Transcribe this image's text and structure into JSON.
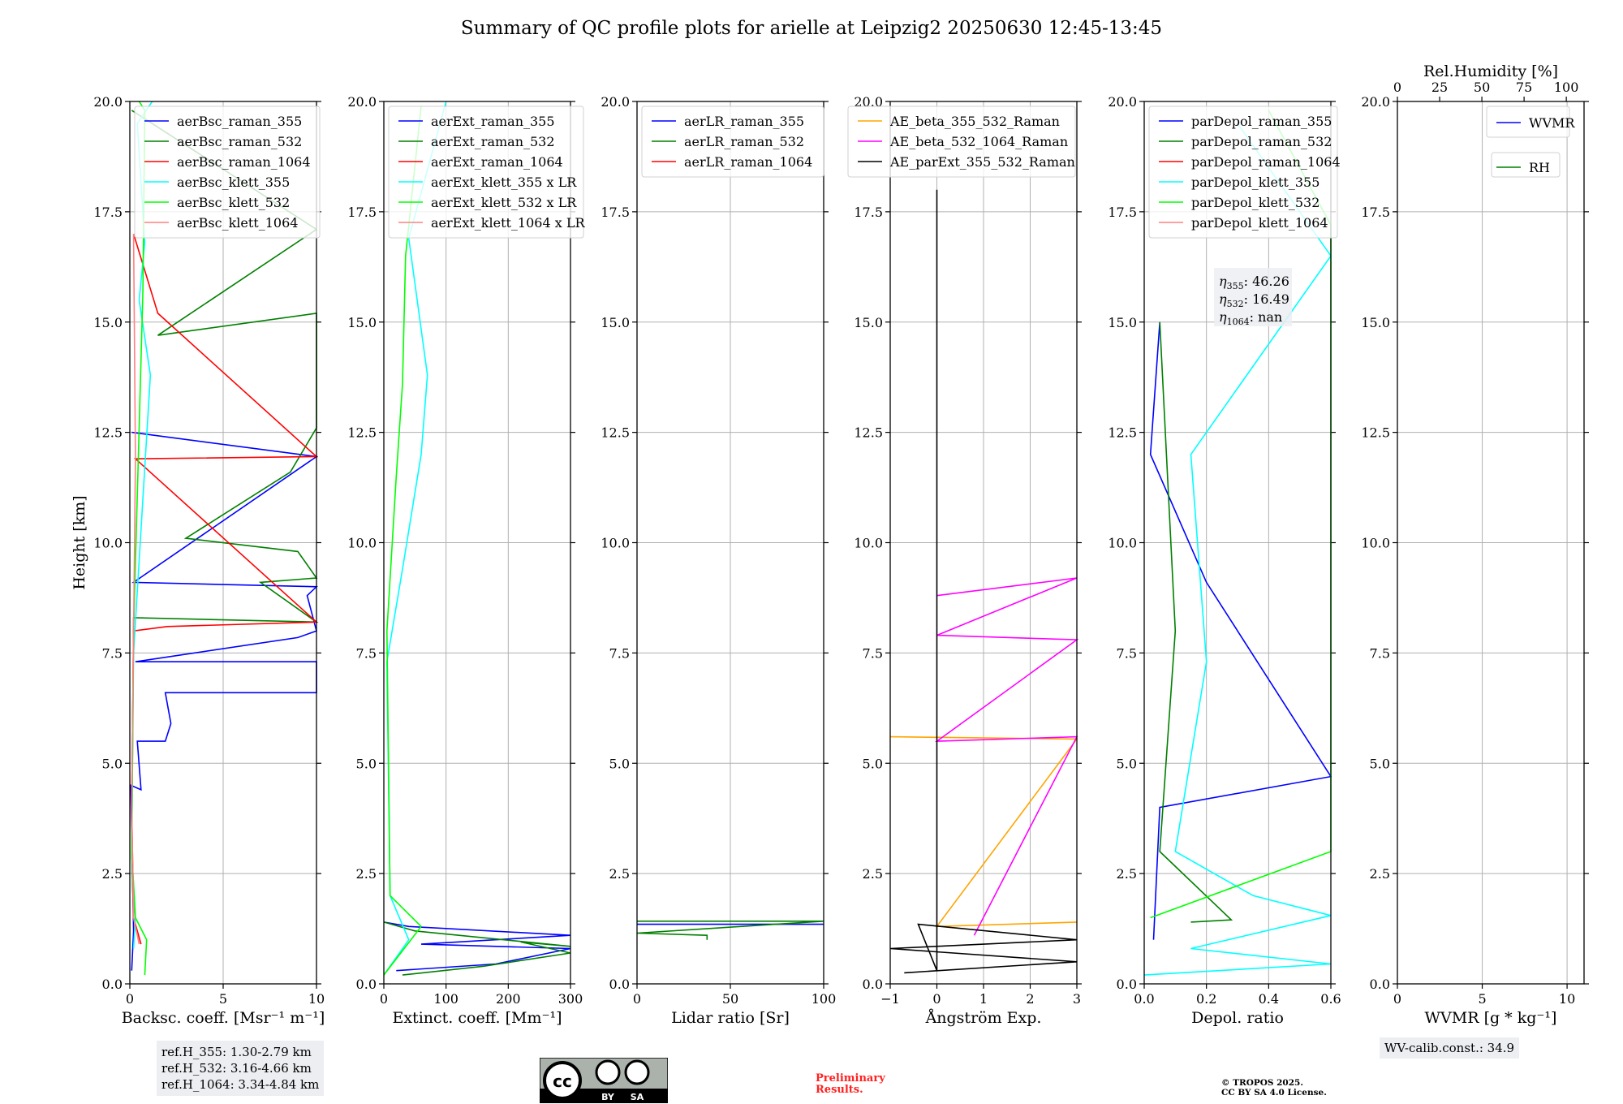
{
  "title": "Summary of QC profile plots for arielle at Leipzig2 20250630 12:45-13:45",
  "annotations": {
    "ref_heights": [
      "ref.H_355: 1.30-2.79 km",
      "ref.H_532: 3.16-4.66 km",
      "ref.H_1064: 3.34-4.84 km"
    ],
    "wv_calib": "WV-calib.const.: 34.9",
    "preliminary": [
      "Preliminary",
      "Results."
    ],
    "copyright": [
      "© TROPOS 2025.",
      "CC BY SA 4.0 License."
    ],
    "eta": [
      {
        "sub": "355",
        "value": ": 46.26"
      },
      {
        "sub": "532",
        "value": ": 16.49"
      },
      {
        "sub": "1064",
        "value": ": nan"
      }
    ],
    "license_badge": {
      "left": "cc",
      "by": "BY",
      "sa": "SA"
    }
  },
  "colors": {
    "blue": "#0000ff",
    "green": "#008000",
    "red": "#ff0000",
    "cyan": "#00ffff",
    "lime": "#00ff00",
    "salmon": "#ff8080",
    "orange": "#ffa500",
    "magenta": "#ff00ff",
    "black": "#000000"
  },
  "chart_data": [
    {
      "type": "line",
      "ylabel": "Height [km]",
      "xlabel": "Backsc. coeff. [Msr⁻¹ m⁻¹]",
      "xlim": [
        0,
        10
      ],
      "ylim": [
        0,
        20
      ],
      "xticks": [
        "0",
        "5",
        "10"
      ],
      "yticks": [
        "0.0",
        "2.5",
        "5.0",
        "7.5",
        "10.0",
        "12.5",
        "15.0",
        "17.5",
        "20.0"
      ],
      "grid": true,
      "legend": "top-right",
      "series": [
        {
          "name": "aerBsc_raman_355",
          "color": "blue",
          "points": [
            [
              0.1,
              0.3
            ],
            [
              0.2,
              1.2
            ],
            [
              0.05,
              4.5
            ],
            [
              0.6,
              4.4
            ],
            [
              0.4,
              5.5
            ],
            [
              1.9,
              5.5
            ],
            [
              2.2,
              5.9
            ],
            [
              1.9,
              6.6
            ],
            [
              10,
              6.6
            ],
            [
              10,
              7.3
            ],
            [
              0.3,
              7.3
            ],
            [
              9,
              7.85
            ],
            [
              10,
              8.0
            ],
            [
              9.5,
              8.8
            ],
            [
              10,
              9.0
            ],
            [
              0.2,
              9.1
            ],
            [
              10,
              11.95
            ],
            [
              0.1,
              12.5
            ]
          ]
        },
        {
          "name": "aerBsc_raman_532",
          "color": "green",
          "points": [
            [
              0.2,
              1.5
            ],
            [
              0.1,
              3
            ],
            [
              0.2,
              8.3
            ],
            [
              10,
              8.2
            ],
            [
              7,
              9.1
            ],
            [
              10,
              9.2
            ],
            [
              9,
              9.8
            ],
            [
              3,
              10.1
            ],
            [
              8.6,
              11.6
            ],
            [
              10,
              12.6
            ],
            [
              10,
              15.2
            ],
            [
              1.5,
              14.7
            ],
            [
              10,
              17.1
            ],
            [
              0.1,
              19.8
            ]
          ]
        },
        {
          "name": "aerBsc_raman_1064",
          "color": "red",
          "points": [
            [
              0.6,
              0.9
            ],
            [
              0.2,
              1.5
            ],
            [
              0.1,
              4
            ],
            [
              0.2,
              8
            ],
            [
              2,
              8.1
            ],
            [
              10,
              8.2
            ],
            [
              0.3,
              11.9
            ],
            [
              10,
              11.95
            ],
            [
              1.5,
              15.2
            ],
            [
              0.2,
              17
            ]
          ]
        },
        {
          "name": "aerBsc_klett_355",
          "color": "cyan",
          "points": [
            [
              0.2,
              0.8
            ],
            [
              0.3,
              1.5
            ],
            [
              0.1,
              3
            ],
            [
              0.2,
              7.5
            ],
            [
              1.1,
              13.8
            ],
            [
              0.5,
              15.5
            ],
            [
              0.8,
              16.8
            ],
            [
              0.4,
              19.5
            ],
            [
              1.2,
              20
            ]
          ]
        },
        {
          "name": "aerBsc_klett_532",
          "color": "lime",
          "points": [
            [
              0.8,
              0.2
            ],
            [
              0.9,
              1.0
            ],
            [
              0.3,
              1.5
            ],
            [
              0.1,
              3
            ],
            [
              0.2,
              8
            ],
            [
              0.7,
              15.7
            ],
            [
              0.8,
              19.8
            ],
            [
              0.5,
              20
            ]
          ]
        },
        {
          "name": "aerBsc_klett_1064",
          "color": "salmon",
          "points": [
            [
              0.5,
              0.9
            ],
            [
              0.2,
              1.5
            ],
            [
              0.1,
              4
            ],
            [
              0.3,
              11.9
            ],
            [
              0.2,
              17
            ]
          ]
        }
      ]
    },
    {
      "type": "line",
      "xlabel": "Extinct. coeff. [Mm⁻¹]",
      "xlim": [
        0,
        300
      ],
      "ylim": [
        0,
        20
      ],
      "xticks": [
        "0",
        "100",
        "200",
        "300"
      ],
      "yticks": [
        "0.0",
        "2.5",
        "5.0",
        "7.5",
        "10.0",
        "12.5",
        "15.0",
        "17.5",
        "20.0"
      ],
      "grid": true,
      "legend": "top-right",
      "series": [
        {
          "name": "aerExt_raman_355",
          "color": "blue",
          "points": [
            [
              20,
              0.3
            ],
            [
              180,
              0.45
            ],
            [
              300,
              0.8
            ],
            [
              60,
              0.9
            ],
            [
              300,
              1.1
            ],
            [
              40,
              1.3
            ],
            [
              0,
              1.4
            ]
          ]
        },
        {
          "name": "aerExt_raman_532",
          "color": "green",
          "points": [
            [
              30,
              0.2
            ],
            [
              160,
              0.4
            ],
            [
              300,
              0.7
            ],
            [
              220,
              0.95
            ],
            [
              300,
              0.85
            ],
            [
              50,
              1.2
            ],
            [
              0,
              1.4
            ]
          ]
        },
        {
          "name": "aerExt_raman_1064",
          "color": "red",
          "points": []
        },
        {
          "name": "aerExt_klett_355 x LR",
          "color": "cyan",
          "points": [
            [
              0,
              0.2
            ],
            [
              40,
              1.0
            ],
            [
              10,
              2
            ],
            [
              5,
              7.3
            ],
            [
              30,
              9.4
            ],
            [
              60,
              12.0
            ],
            [
              70,
              13.8
            ],
            [
              40,
              16.9
            ],
            [
              100,
              20
            ]
          ]
        },
        {
          "name": "aerExt_klett_532 x LR",
          "color": "lime",
          "points": [
            [
              0,
              0.2
            ],
            [
              60,
              1.3
            ],
            [
              10,
              2
            ],
            [
              5,
              8
            ],
            [
              20,
              11.5
            ],
            [
              30,
              13.6
            ],
            [
              35,
              16.5
            ],
            [
              60,
              19.9
            ]
          ]
        },
        {
          "name": "aerExt_klett_1064 x LR",
          "color": "salmon",
          "points": []
        }
      ]
    },
    {
      "type": "line",
      "xlabel": "Lidar ratio [Sr]",
      "xlim": [
        0,
        120
      ],
      "ylim": [
        0,
        20
      ],
      "xticks": [
        "0",
        "50",
        "100"
      ],
      "yticks": [
        "0.0",
        "2.5",
        "5.0",
        "7.5",
        "10.0",
        "12.5",
        "15.0",
        "17.5",
        "20.0"
      ],
      "grid": true,
      "legend": "top-right",
      "series": [
        {
          "name": "aerLR_raman_355",
          "color": "blue",
          "points": [
            [
              0,
              1.35
            ],
            [
              120,
              1.35
            ]
          ]
        },
        {
          "name": "aerLR_raman_532",
          "color": "green",
          "points": [
            [
              0,
              1.42
            ],
            [
              120,
              1.42
            ],
            [
              0,
              1.15
            ],
            [
              45,
              1.1
            ],
            [
              45,
              1.0
            ]
          ]
        },
        {
          "name": "aerLR_raman_1064",
          "color": "red",
          "points": []
        }
      ]
    },
    {
      "type": "line",
      "xlabel": "Ångström Exp.",
      "xlim": [
        -1,
        3
      ],
      "ylim": [
        0,
        20
      ],
      "xticks": [
        "−1",
        "0",
        "1",
        "2",
        "3"
      ],
      "yticks": [
        "0.0",
        "2.5",
        "5.0",
        "7.5",
        "10.0",
        "12.5",
        "15.0",
        "17.5",
        "20.0"
      ],
      "grid": true,
      "legend": "top-left",
      "series": [
        {
          "name": "AE_beta_355_532_Raman",
          "color": "orange",
          "points": [
            [
              -1,
              5.6
            ],
            [
              3,
              5.55
            ],
            [
              0,
              1.3
            ],
            [
              3,
              1.4
            ]
          ]
        },
        {
          "name": "AE_beta_532_1064_Raman",
          "color": "magenta",
          "points": [
            [
              0,
              8.8
            ],
            [
              3,
              9.2
            ],
            [
              0,
              7.9
            ],
            [
              3,
              7.8
            ],
            [
              0,
              5.5
            ],
            [
              3,
              5.6
            ],
            [
              0.8,
              1.1
            ]
          ]
        },
        {
          "name": "AE_parExt_355_532_Raman",
          "color": "black",
          "points": [
            [
              0,
              18
            ],
            [
              0,
              0.3
            ],
            [
              -0.4,
              1.35
            ],
            [
              3,
              1.0
            ],
            [
              -1,
              0.8
            ],
            [
              3,
              0.5
            ],
            [
              -0.7,
              0.25
            ]
          ]
        }
      ]
    },
    {
      "type": "line",
      "xlabel": "Depol. ratio",
      "xlim": [
        0,
        0.6
      ],
      "ylim": [
        0,
        20
      ],
      "xticks": [
        "0.0",
        "0.2",
        "0.4",
        "0.6"
      ],
      "yticks": [
        "0.0",
        "2.5",
        "5.0",
        "7.5",
        "10.0",
        "12.5",
        "15.0",
        "17.5",
        "20.0"
      ],
      "grid": true,
      "legend": "top-right",
      "series": [
        {
          "name": "parDepol_raman_355",
          "color": "blue",
          "points": [
            [
              0.03,
              1
            ],
            [
              0.05,
              4
            ],
            [
              0.6,
              4.7
            ],
            [
              0.2,
              9.1
            ],
            [
              0.02,
              12
            ],
            [
              0.05,
              15
            ]
          ]
        },
        {
          "name": "parDepol_raman_532",
          "color": "green",
          "points": [
            [
              0.15,
              1.4
            ],
            [
              0.28,
              1.45
            ],
            [
              0.05,
              3
            ],
            [
              0.1,
              8
            ],
            [
              0.05,
              15
            ]
          ]
        },
        {
          "name": "parDepol_raman_1064",
          "color": "red",
          "points": []
        },
        {
          "name": "parDepol_klett_355",
          "color": "cyan",
          "points": [
            [
              0.0,
              0.2
            ],
            [
              0.6,
              0.45
            ],
            [
              0.15,
              0.8
            ],
            [
              0.6,
              1.55
            ],
            [
              0.35,
              2
            ],
            [
              0.1,
              3
            ],
            [
              0.2,
              7.3
            ],
            [
              0.15,
              12
            ],
            [
              0.6,
              16.5
            ],
            [
              0.3,
              19.5
            ]
          ]
        },
        {
          "name": "parDepol_klett_532",
          "color": "lime",
          "points": [
            [
              0.02,
              1.5
            ],
            [
              0.6,
              3.0
            ],
            [
              0.6,
              6.7
            ],
            [
              0.6,
              9.5
            ],
            [
              0.6,
              12.0
            ],
            [
              0.6,
              14.2
            ],
            [
              0.6,
              16.5
            ],
            [
              0.6,
              17.2
            ],
            [
              0.4,
              19.8
            ]
          ]
        },
        {
          "name": "parDepol_klett_1064",
          "color": "salmon",
          "points": []
        }
      ]
    },
    {
      "type": "line",
      "xlabel": "WVMR [g * kg⁻¹]",
      "top_xlabel": "Rel.Humidity [%]",
      "xlim": [
        0,
        11
      ],
      "ylim": [
        0,
        20
      ],
      "top_xlim": [
        0,
        100
      ],
      "xticks": [
        "0",
        "5",
        "10"
      ],
      "top_xticks": [
        "0",
        "25",
        "50",
        "75",
        "100"
      ],
      "yticks": [
        "0.0",
        "2.5",
        "5.0",
        "7.5",
        "10.0",
        "12.5",
        "15.0",
        "17.5",
        "20.0"
      ],
      "grid": true,
      "legend": "top-right",
      "series": [
        {
          "name": "WVMR",
          "color": "blue",
          "points": []
        },
        {
          "name": "RH",
          "color": "green",
          "points": []
        }
      ]
    }
  ]
}
